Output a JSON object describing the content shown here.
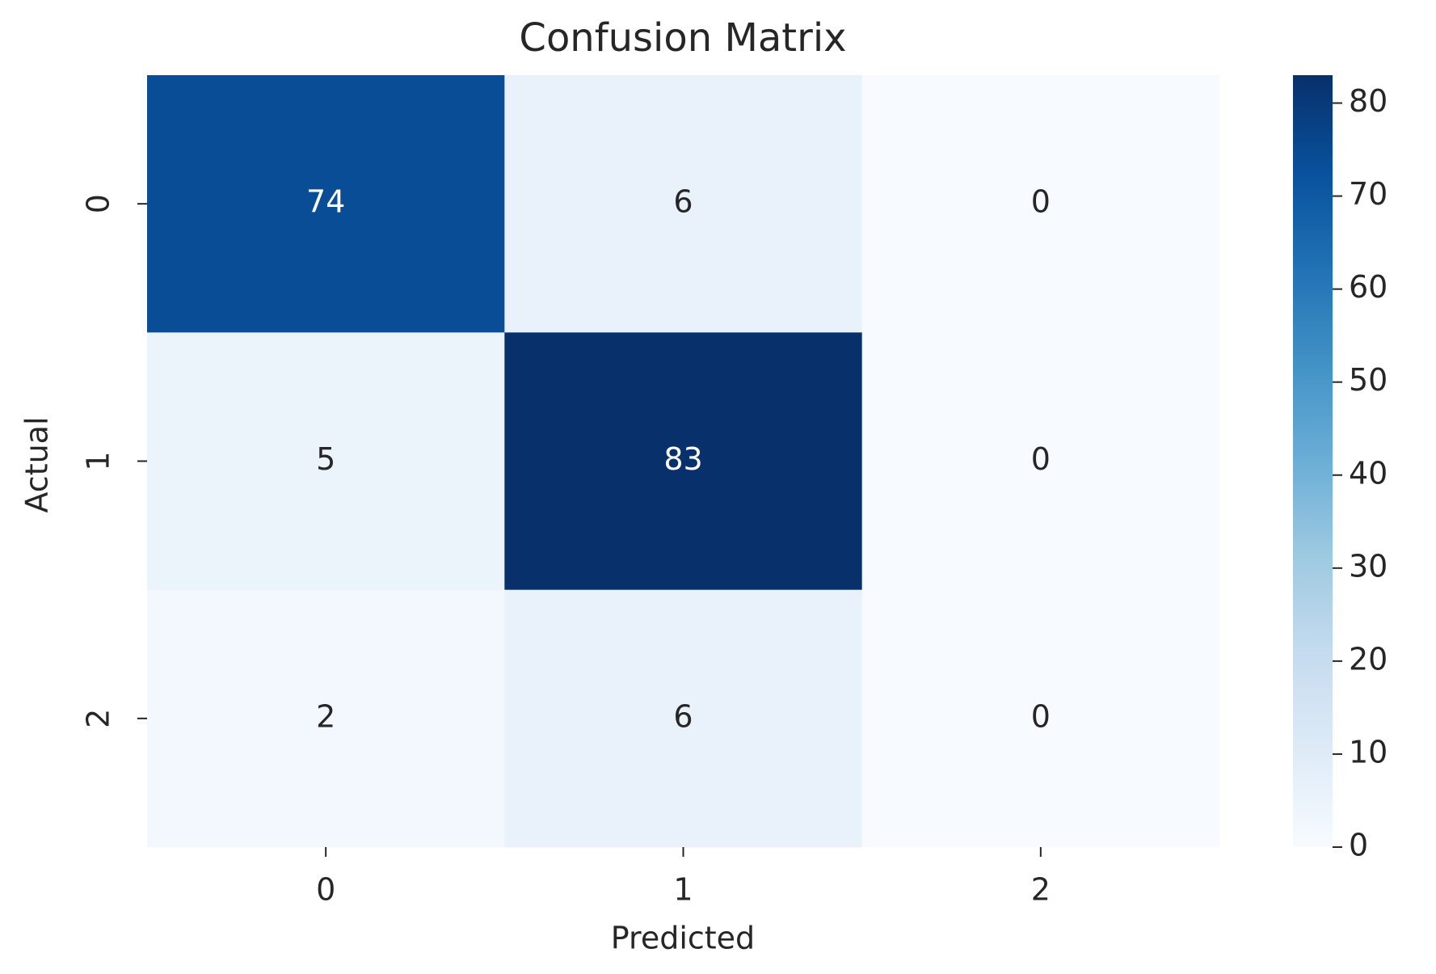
{
  "chart_data": {
    "type": "heatmap",
    "title": "Confusion Matrix",
    "x_label": "Predicted",
    "y_label": "Actual",
    "x_categories": [
      "0",
      "1",
      "2"
    ],
    "y_categories": [
      "0",
      "1",
      "2"
    ],
    "values": [
      [
        74,
        6,
        0
      ],
      [
        5,
        83,
        0
      ],
      [
        2,
        6,
        0
      ]
    ],
    "colormap": [
      "#f7fbff",
      "#deebf7",
      "#c6dbef",
      "#9ecae1",
      "#6baed6",
      "#4292c6",
      "#2171b5",
      "#08519c",
      "#08306b"
    ],
    "clim": [
      0,
      83
    ],
    "cticks": [
      0,
      10,
      20,
      30,
      40,
      50,
      60,
      70,
      80
    ]
  }
}
